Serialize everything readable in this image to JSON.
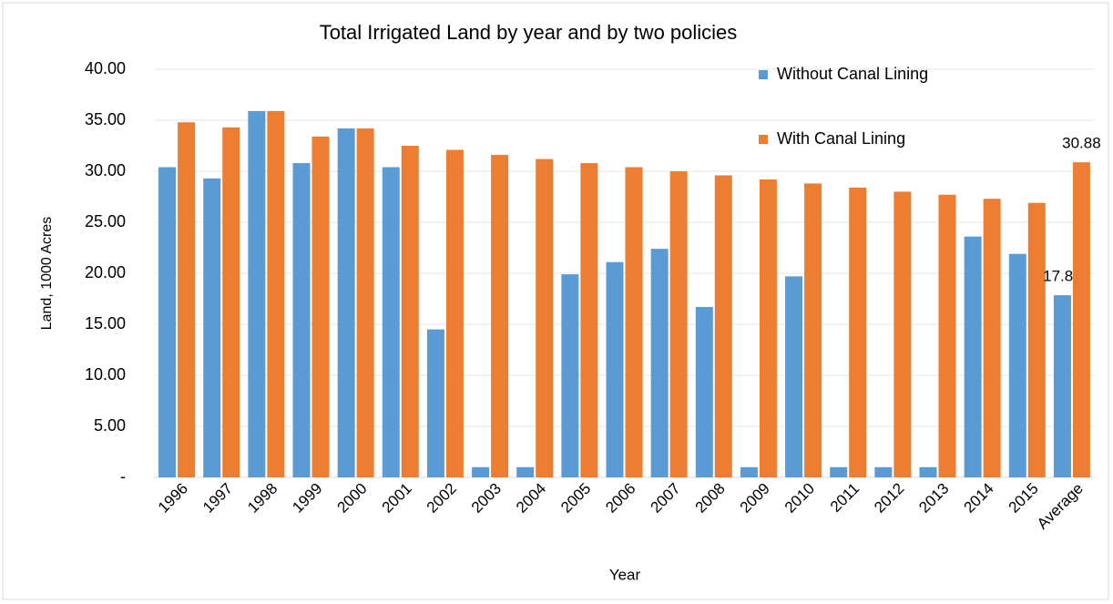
{
  "chart_data": {
    "type": "bar",
    "title": "Total Irrigated Land by year and by two policies",
    "x_label": "Year",
    "y_label": "Land, 1000 Acres",
    "categories": [
      "1996",
      "1997",
      "1998",
      "1999",
      "2000",
      "2001",
      "2002",
      "2003",
      "2004",
      "2005",
      "2006",
      "2007",
      "2008",
      "2009",
      "2010",
      "2011",
      "2012",
      "2013",
      "2014",
      "2015",
      "Average"
    ],
    "series": [
      {
        "name": "Without Canal Lining",
        "color": "#5b9bd5",
        "values": [
          30.4,
          29.3,
          35.9,
          30.8,
          34.2,
          30.4,
          14.5,
          1.0,
          1.0,
          19.9,
          21.1,
          22.4,
          16.7,
          1.0,
          19.7,
          1.0,
          1.0,
          1.0,
          23.6,
          21.9,
          17.85
        ],
        "value_labels": [
          null,
          null,
          null,
          null,
          null,
          null,
          null,
          null,
          null,
          null,
          null,
          null,
          null,
          null,
          null,
          null,
          null,
          null,
          null,
          null,
          "17.85"
        ]
      },
      {
        "name": "With Canal Lining",
        "color": "#ed7d31",
        "values": [
          34.8,
          34.3,
          35.9,
          33.4,
          34.2,
          32.5,
          32.1,
          31.6,
          31.2,
          30.8,
          30.4,
          30.0,
          29.6,
          29.2,
          28.8,
          28.4,
          28.0,
          27.7,
          27.3,
          26.9,
          30.88
        ],
        "value_labels": [
          null,
          null,
          null,
          null,
          null,
          null,
          null,
          null,
          null,
          null,
          null,
          null,
          null,
          null,
          null,
          null,
          null,
          null,
          null,
          null,
          "30.88"
        ]
      }
    ],
    "ylim": [
      0,
      40
    ],
    "yticks": [
      {
        "value": 0,
        "label": "-"
      },
      {
        "value": 5,
        "label": "5.00"
      },
      {
        "value": 10,
        "label": "10.00"
      },
      {
        "value": 15,
        "label": "15.00"
      },
      {
        "value": 20,
        "label": "20.00"
      },
      {
        "value": 25,
        "label": "25.00"
      },
      {
        "value": 30,
        "label": "30.00"
      },
      {
        "value": 35,
        "label": "35.00"
      },
      {
        "value": 40,
        "label": "40.00"
      }
    ],
    "grid": true,
    "legend_position": "top-right"
  }
}
